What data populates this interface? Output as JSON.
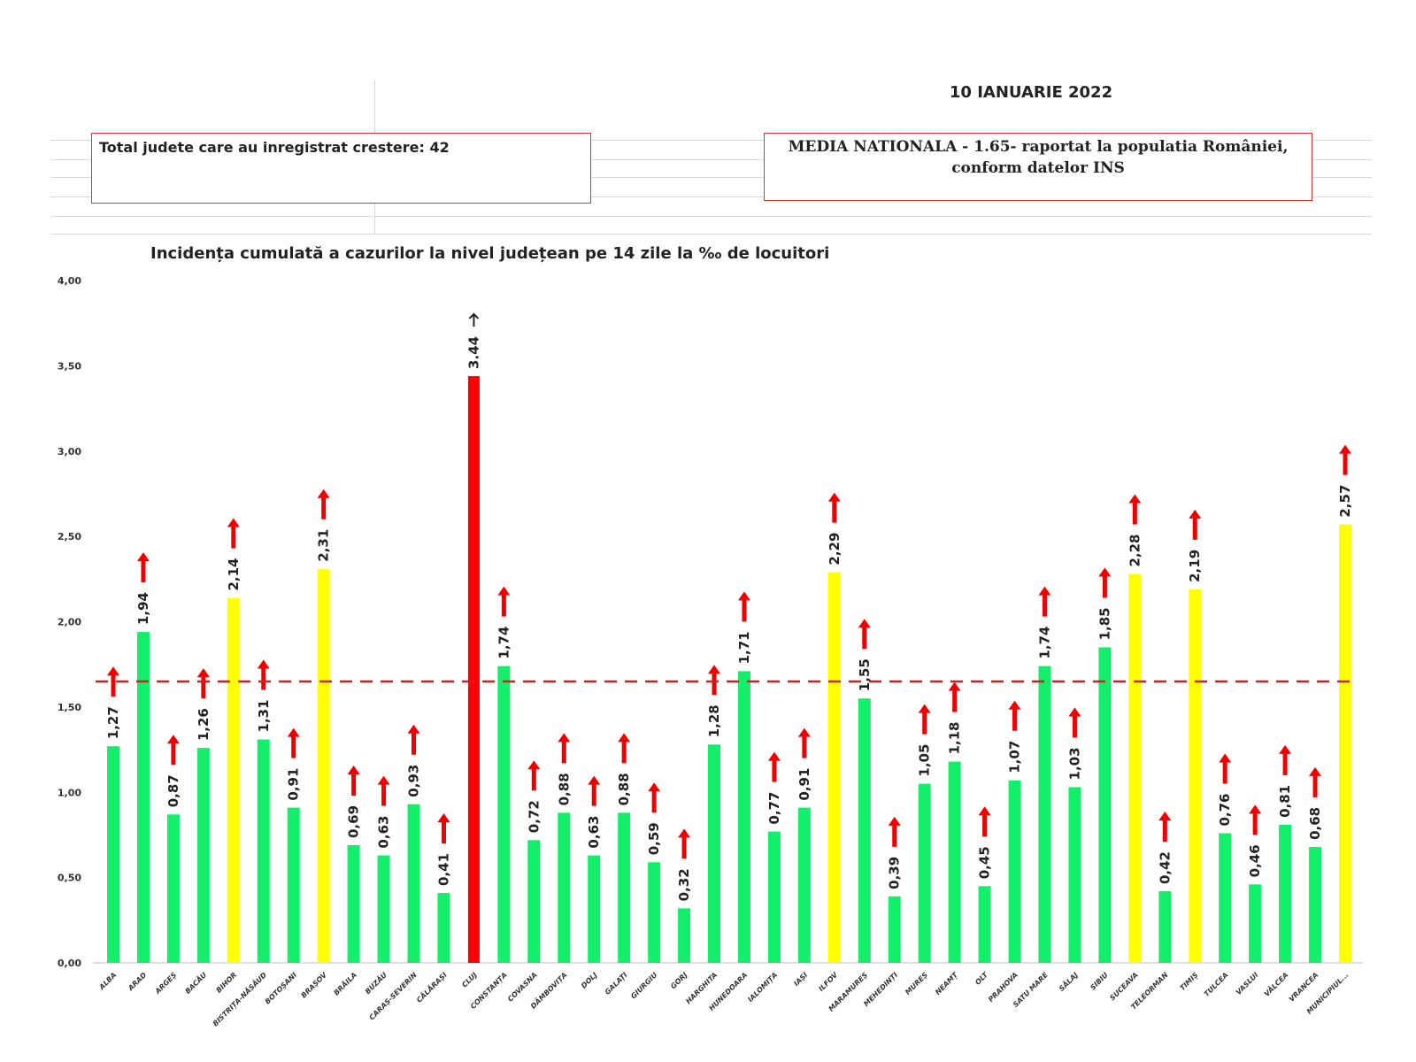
{
  "header": {
    "date": "10 IANUARIE 2022",
    "total_box": "Total judete care au inregistrat crestere: 42",
    "national_box_line1": "MEDIA NATIONALA - 1.65-  raportat la populatia României,",
    "national_box_line2": "conform datelor INS"
  },
  "colors": {
    "green": "#13ef6b",
    "yellow": "#ffff00",
    "red": "#ff0000",
    "arrow": "#ee0000",
    "mean_line": "#cc2222"
  },
  "chart_data": {
    "type": "bar",
    "title": "Incidența cumulată a cazurilor la nivel județean pe 14 zile la ‰ de locuitori",
    "ylim": [
      0,
      4
    ],
    "yticks": [
      "0,00",
      "0,50",
      "1,00",
      "1,50",
      "2,00",
      "2,50",
      "3,00",
      "3,50",
      "4,00"
    ],
    "reference_line": {
      "value": 1.65,
      "style": "dashed",
      "color": "#cc2222"
    },
    "categories": [
      "ALBA",
      "ARAD",
      "ARGEȘ",
      "BACĂU",
      "BIHOR",
      "BISTRIȚA-NĂSĂUD",
      "BOTOȘANI",
      "BRAȘOV",
      "BRĂILA",
      "BUZĂU",
      "CARAȘ-SEVERIN",
      "CĂLĂRAȘI",
      "CLUJ",
      "CONSTANȚA",
      "COVASNA",
      "DÂMBOVIȚA",
      "DOLJ",
      "GALAȚI",
      "GIURGIU",
      "GORJ",
      "HARGHITA",
      "HUNEDOARA",
      "IALOMIȚA",
      "IAȘI",
      "ILFOV",
      "MARAMUREȘ",
      "MEHEDINȚI",
      "MUREȘ",
      "NEAMȚ",
      "OLT",
      "PRAHOVA",
      "SATU MARE",
      "SĂLAJ",
      "SIBIU",
      "SUCEAVA",
      "TELEORMAN",
      "TIMIȘ",
      "TULCEA",
      "VASLUI",
      "VÂLCEA",
      "VRANCEA",
      "MUNICIPIUL..."
    ],
    "values": [
      1.27,
      1.94,
      0.87,
      1.26,
      2.14,
      1.31,
      0.91,
      2.31,
      0.69,
      0.63,
      0.93,
      0.41,
      3.44,
      1.74,
      0.72,
      0.88,
      0.63,
      0.88,
      0.59,
      0.32,
      1.28,
      1.71,
      0.77,
      0.91,
      2.29,
      1.55,
      0.39,
      1.05,
      1.18,
      0.45,
      1.07,
      1.74,
      1.03,
      1.85,
      2.28,
      0.42,
      2.19,
      0.76,
      0.46,
      0.81,
      0.68,
      2.57
    ],
    "labels": [
      "1,27",
      "1,94",
      "0,87",
      "1,26",
      "2,14",
      "1,31",
      "0,91",
      "2,31",
      "0,69",
      "0,63",
      "0,93",
      "0,41",
      "3.44",
      "1,74",
      "0,72",
      "0,88",
      "0,63",
      "0,88",
      "0,59",
      "0,32",
      "1,28",
      "1,71",
      "0,77",
      "0,91",
      "2,29",
      "1,55",
      "0,39",
      "1,05",
      "1,18",
      "0,45",
      "1,07",
      "1,74",
      "1,03",
      "1,85",
      "2,28",
      "0,42",
      "2,19",
      "0,76",
      "0,46",
      "0,81",
      "0,68",
      "2,57"
    ],
    "bar_colors": [
      "green",
      "green",
      "green",
      "green",
      "yellow",
      "green",
      "green",
      "yellow",
      "green",
      "green",
      "green",
      "green",
      "red",
      "green",
      "green",
      "green",
      "green",
      "green",
      "green",
      "green",
      "green",
      "green",
      "green",
      "green",
      "yellow",
      "green",
      "green",
      "green",
      "green",
      "green",
      "green",
      "green",
      "green",
      "green",
      "yellow",
      "green",
      "yellow",
      "green",
      "green",
      "green",
      "green",
      "yellow"
    ],
    "trend": "increase"
  }
}
